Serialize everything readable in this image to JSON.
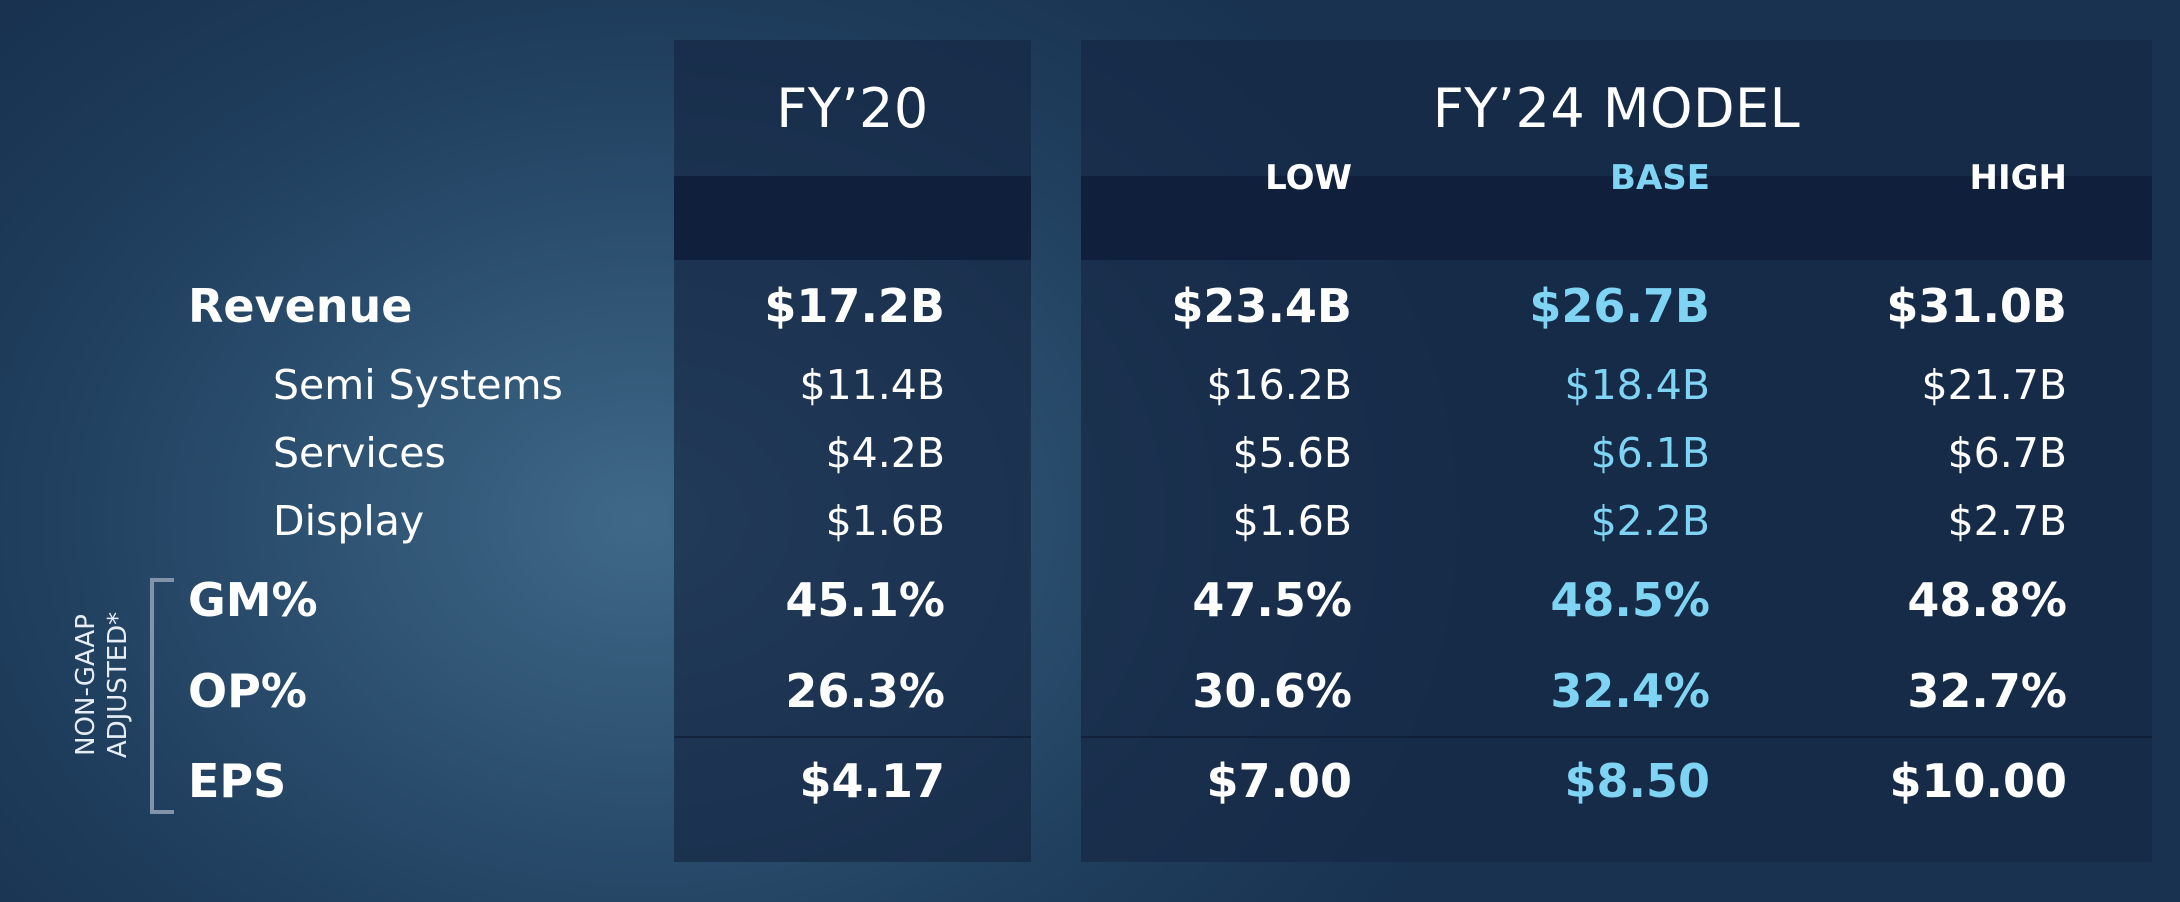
{
  "fy20": {
    "title": "FY’20"
  },
  "fy24": {
    "title": "FY’24 MODEL",
    "columns": [
      "LOW",
      "BASE",
      "HIGH"
    ]
  },
  "note": {
    "line1": "NON-GAAP",
    "line2": "ADJUSTED*"
  },
  "rows": [
    {
      "label": "Revenue",
      "fy20": "$17.2B",
      "low": "$23.4B",
      "base": "$26.7B",
      "high": "$31.0B"
    },
    {
      "label": "Semi Systems",
      "fy20": "$11.4B",
      "low": "$16.2B",
      "base": "$18.4B",
      "high": "$21.7B"
    },
    {
      "label": "Services",
      "fy20": "$4.2B",
      "low": "$5.6B",
      "base": "$6.1B",
      "high": "$6.7B"
    },
    {
      "label": "Display",
      "fy20": "$1.6B",
      "low": "$1.6B",
      "base": "$2.2B",
      "high": "$2.7B"
    },
    {
      "label": "GM%",
      "fy20": "45.1%",
      "low": "47.5%",
      "base": "48.5%",
      "high": "48.8%"
    },
    {
      "label": "OP%",
      "fy20": "26.3%",
      "low": "30.6%",
      "base": "32.4%",
      "high": "32.7%"
    },
    {
      "label": "EPS",
      "fy20": "$4.17",
      "low": "$7.00",
      "base": "$8.50",
      "high": "$10.00"
    }
  ],
  "colors": {
    "accent": "#7fd3f3",
    "text": "#ffffff",
    "panel": "#162844",
    "band": "#101f3c"
  }
}
